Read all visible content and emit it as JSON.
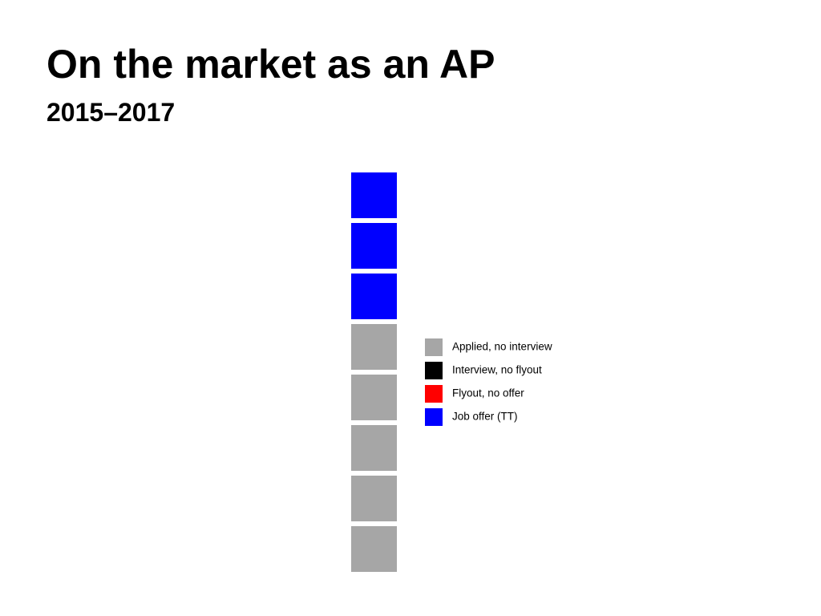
{
  "chart_data": {
    "type": "waffle",
    "title": "On the market as an AP",
    "subtitle": "2015–2017",
    "categories": [
      "Applied, no interview",
      "Interview, no flyout",
      "Flyout, no offer",
      "Job offer (TT)"
    ],
    "values": [
      5,
      0,
      0,
      3
    ],
    "colors": [
      "#a6a6a6",
      "#000000",
      "#ff0000",
      "#0000ff"
    ]
  }
}
